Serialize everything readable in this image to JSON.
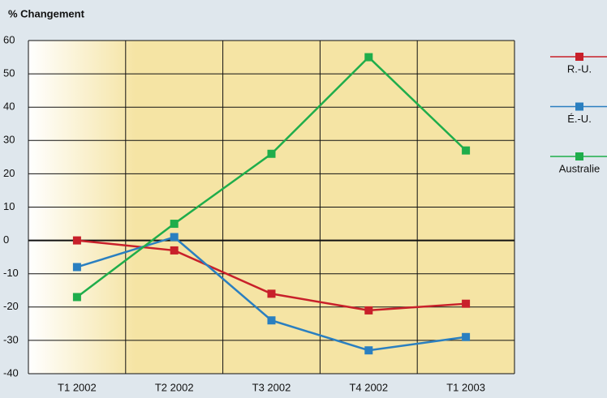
{
  "chart_data": {
    "type": "line",
    "title": "% Changement",
    "categories": [
      "T1 2002",
      "T2 2002",
      "T3 2002",
      "T4 2002",
      "T1 2003"
    ],
    "series": [
      {
        "name": "R.-U.",
        "color": "#c8202a",
        "values": [
          0,
          -3,
          -16,
          -21,
          -19
        ]
      },
      {
        "name": "É.-U.",
        "color": "#2a7fc0",
        "values": [
          -8,
          1,
          -24,
          -33,
          -29
        ]
      },
      {
        "name": "Australie",
        "color": "#1fad4b",
        "values": [
          -17,
          5,
          26,
          55,
          27
        ]
      }
    ],
    "ylim": [
      -40,
      60
    ],
    "yticks": [
      -40,
      -30,
      -20,
      -10,
      0,
      10,
      20,
      30,
      40,
      50,
      60
    ],
    "grid": true,
    "legend": "right"
  }
}
